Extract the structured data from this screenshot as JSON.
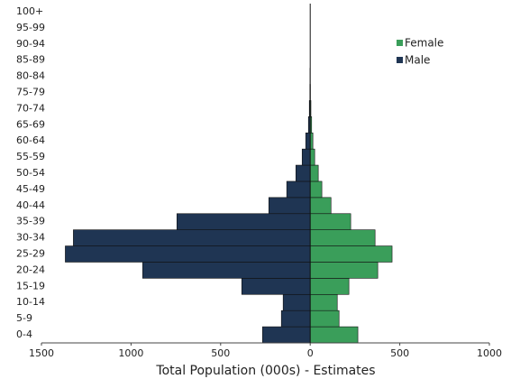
{
  "chart_data": {
    "type": "pyramid",
    "xlabel": "Total Population (000s) - Estimates",
    "categories": [
      "0-4",
      "5-9",
      "10-14",
      "15-19",
      "20-24",
      "25-29",
      "30-34",
      "35-39",
      "40-44",
      "45-49",
      "50-54",
      "55-59",
      "60-64",
      "65-69",
      "70-74",
      "75-79",
      "80-84",
      "85-89",
      "90-94",
      "95-99",
      "100+"
    ],
    "series": [
      {
        "name": "Female",
        "color": "#3a9e5a",
        "values": [
          266,
          161,
          151,
          216,
          377,
          457,
          362,
          226,
          116,
          65,
          45,
          25,
          15,
          8,
          4,
          1,
          0,
          0,
          0,
          0,
          0
        ]
      },
      {
        "name": "Male",
        "color": "#1f3553",
        "values": [
          -266,
          -161,
          -151,
          -382,
          -935,
          -1367,
          -1322,
          -744,
          -231,
          -131,
          -80,
          -45,
          -25,
          -10,
          -5,
          -2,
          -1,
          0,
          0,
          0,
          0
        ]
      }
    ],
    "xlim": [
      -1500,
      1000
    ],
    "xticks": [
      {
        "value": -1500,
        "label": "1500"
      },
      {
        "value": -1000,
        "label": "1000"
      },
      {
        "value": -500,
        "label": "500"
      },
      0,
      500,
      1000
    ],
    "legend": "upper right"
  }
}
